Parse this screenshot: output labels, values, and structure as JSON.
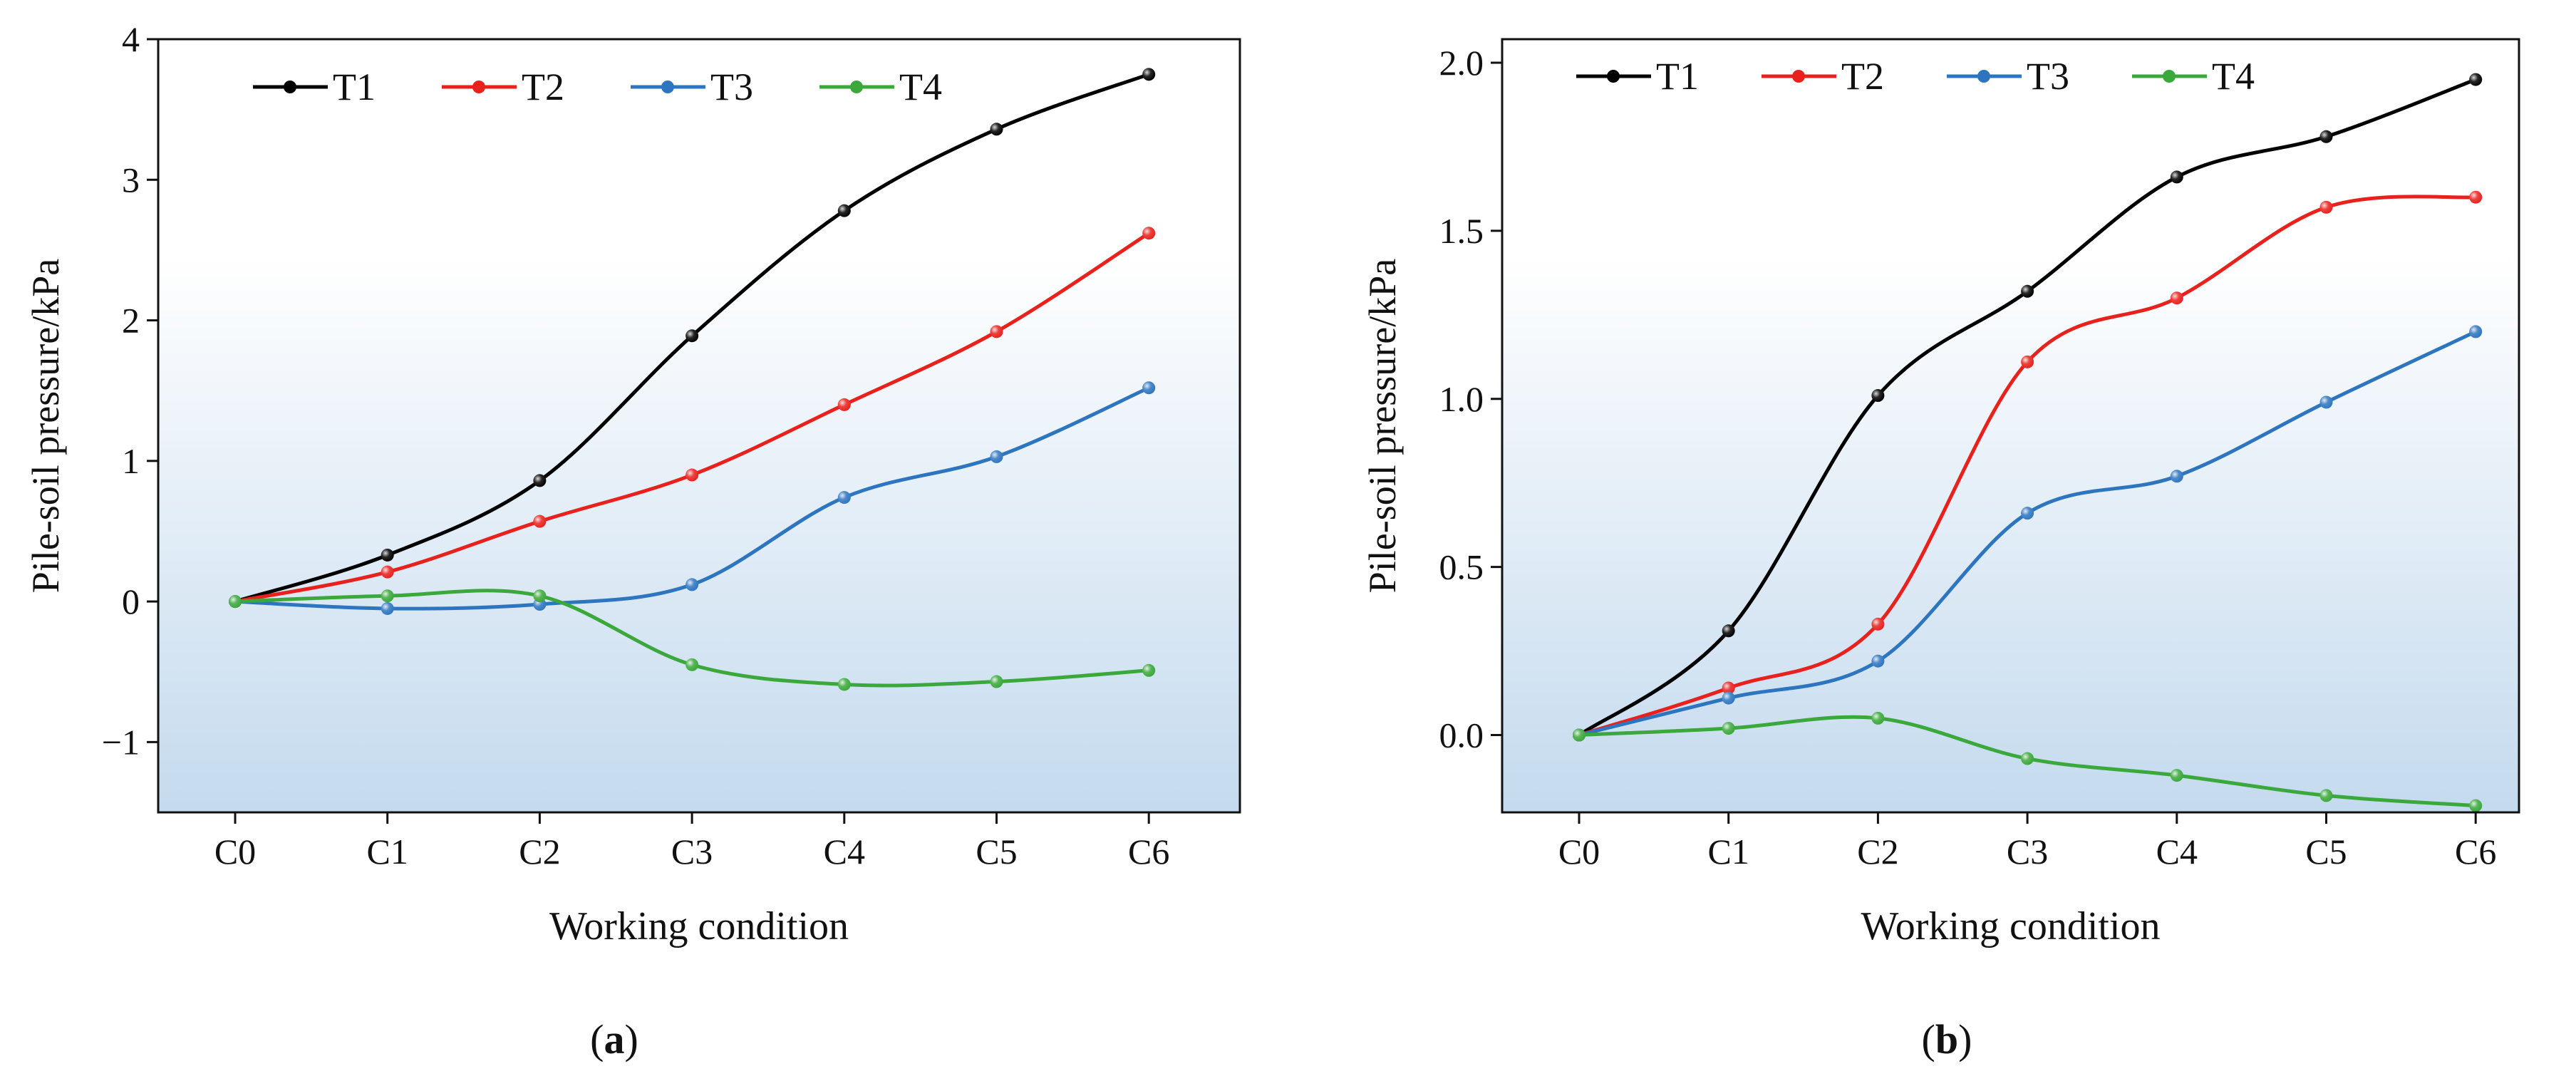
{
  "chart_data": [
    {
      "type": "line",
      "panel_label": "a",
      "categories": [
        "C0",
        "C1",
        "C2",
        "C3",
        "C4",
        "C5",
        "C6"
      ],
      "xlabel": "Working condition",
      "ylabel": "Pile-soil pressure/kPa",
      "ylim": [
        -1.5,
        4.0
      ],
      "yticks": [
        -1,
        0,
        1,
        2,
        3,
        4
      ],
      "ytick_labels": [
        "−1",
        "0",
        "1",
        "2",
        "3",
        "4"
      ],
      "legend_position": "top-left",
      "series": [
        {
          "name": "T1",
          "color": "#000000",
          "values": [
            0,
            0.33,
            0.86,
            1.89,
            2.78,
            3.36,
            3.75
          ]
        },
        {
          "name": "T2",
          "color": "#e8211d",
          "values": [
            0,
            0.21,
            0.57,
            0.9,
            1.4,
            1.92,
            2.62
          ]
        },
        {
          "name": "T3",
          "color": "#2e75c0",
          "values": [
            0,
            -0.05,
            -0.02,
            0.12,
            0.74,
            1.03,
            1.52
          ]
        },
        {
          "name": "T4",
          "color": "#3aa83a",
          "values": [
            0,
            0.04,
            0.04,
            -0.45,
            -0.59,
            -0.57,
            -0.49
          ]
        }
      ]
    },
    {
      "type": "line",
      "panel_label": "b",
      "categories": [
        "C0",
        "C1",
        "C2",
        "C3",
        "C4",
        "C5",
        "C6"
      ],
      "xlabel": "Working condition",
      "ylabel": "Pile-soil pressure/kPa",
      "ylim": [
        -0.23,
        2.07
      ],
      "yticks": [
        0,
        0.5,
        1.0,
        1.5,
        2.0
      ],
      "ytick_labels": [
        "0.0",
        "0.5",
        "1.0",
        "1.5",
        "2.0"
      ],
      "legend_position": "top-left",
      "series": [
        {
          "name": "T1",
          "color": "#000000",
          "values": [
            0,
            0.31,
            1.01,
            1.32,
            1.66,
            1.78,
            1.95
          ]
        },
        {
          "name": "T2",
          "color": "#e8211d",
          "values": [
            0,
            0.14,
            0.33,
            1.11,
            1.3,
            1.57,
            1.6
          ]
        },
        {
          "name": "T3",
          "color": "#2e75c0",
          "values": [
            0,
            0.11,
            0.22,
            0.66,
            0.77,
            0.99,
            1.2
          ]
        },
        {
          "name": "T4",
          "color": "#3aa83a",
          "values": [
            0,
            0.02,
            0.05,
            -0.07,
            -0.12,
            -0.18,
            -0.21
          ]
        }
      ]
    }
  ],
  "captions": [
    {
      "open": "(",
      "letter": "a",
      "close": ")"
    },
    {
      "open": "(",
      "letter": "b",
      "close": ")"
    }
  ]
}
